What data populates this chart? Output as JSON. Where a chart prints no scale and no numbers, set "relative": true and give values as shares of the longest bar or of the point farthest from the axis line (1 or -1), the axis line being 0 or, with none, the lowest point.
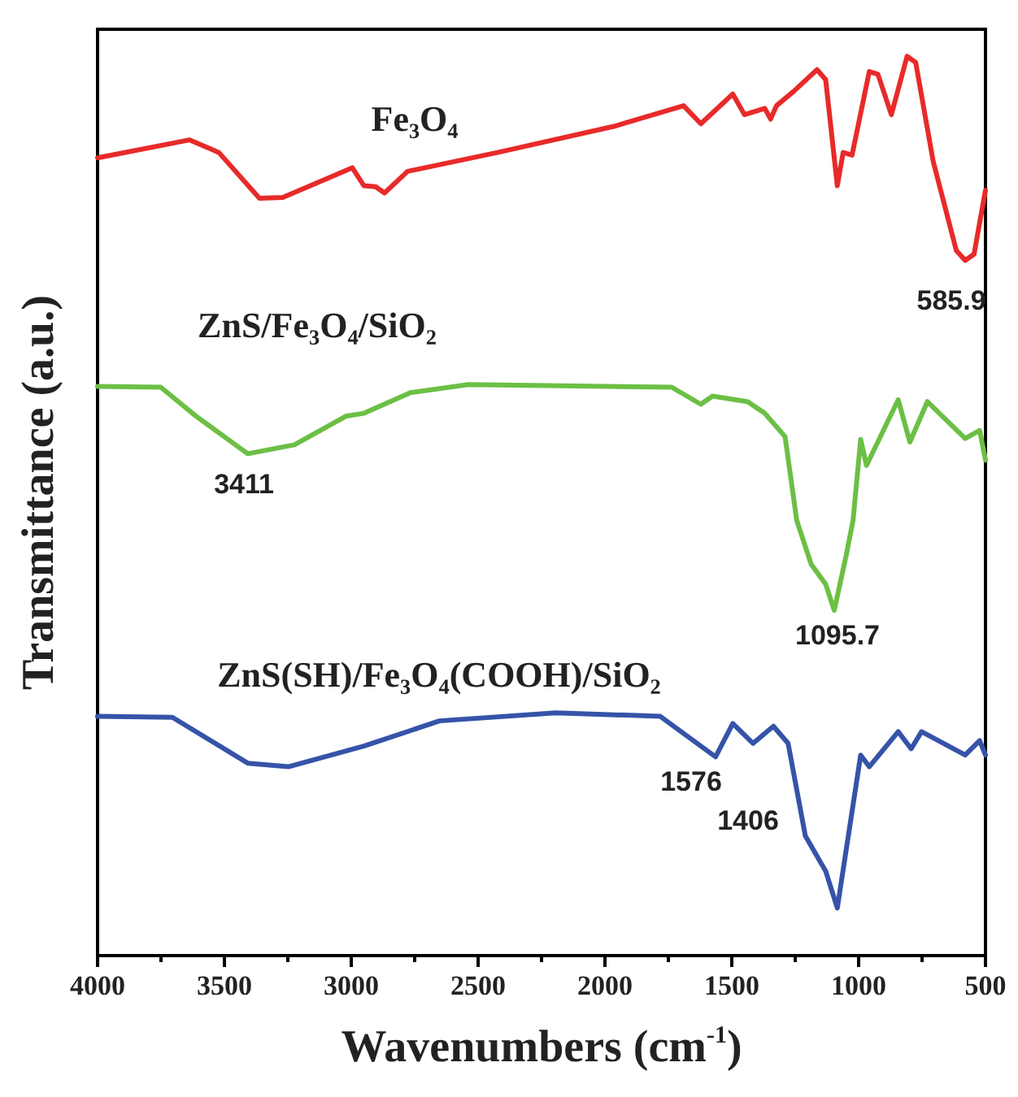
{
  "chart_data": {
    "type": "line",
    "relative": true,
    "xlabel": "Wavenumbers (cm$^{-1}$)",
    "ylabel": "Transmittance (a.u.)",
    "xlim": [
      4000,
      500
    ],
    "xticks": [
      4000,
      3500,
      3000,
      2500,
      2000,
      1500,
      1000,
      500
    ],
    "legend": false,
    "grid": false,
    "series": [
      {
        "name": "Fe₃O₄",
        "color": "#e82a2a",
        "x": [
          4000,
          3637,
          3522,
          3362,
          3270,
          2996,
          2950,
          2904,
          2869,
          2778,
          2423,
          1965,
          1690,
          1622,
          1496,
          1450,
          1370,
          1347,
          1324,
          1256,
          1164,
          1130,
          1084,
          1061,
          1026,
          958,
          924,
          871,
          809,
          775,
          706,
          615,
          580,
          545,
          500
        ],
        "values": [
          0.887,
          0.907,
          0.893,
          0.842,
          0.843,
          0.876,
          0.856,
          0.855,
          0.848,
          0.872,
          0.893,
          0.922,
          0.945,
          0.925,
          0.958,
          0.935,
          0.942,
          0.93,
          0.945,
          0.961,
          0.985,
          0.974,
          0.856,
          0.893,
          0.89,
          0.983,
          0.98,
          0.935,
          1,
          0.993,
          0.883,
          0.784,
          0.773,
          0.78,
          0.851
        ]
      },
      {
        "name": "ZnS/Fe₃O₄/SiO₂",
        "color": "#6cbf45",
        "x": [
          4000,
          3751,
          3613,
          3408,
          3224,
          3019,
          2950,
          2767,
          2538,
          1737,
          1622,
          1576,
          1438,
          1370,
          1290,
          1244,
          1187,
          1130,
          1096,
          1049,
          1022,
          992,
          969,
          844,
          798,
          729,
          580,
          523,
          500
        ],
        "values": [
          0.633,
          0.632,
          0.6,
          0.558,
          0.568,
          0.6,
          0.603,
          0.626,
          0.635,
          0.632,
          0.613,
          0.622,
          0.616,
          0.603,
          0.577,
          0.484,
          0.435,
          0.413,
          0.384,
          0.445,
          0.484,
          0.574,
          0.545,
          0.618,
          0.571,
          0.616,
          0.575,
          0.584,
          0.551
        ]
      },
      {
        "name": "ZnS(SH)/Fe₃O₄(COOH)/SiO₂",
        "color": "#3553a8",
        "x": [
          4000,
          3705,
          3408,
          3248,
          2950,
          2652,
          2194,
          1782,
          1564,
          1496,
          1416,
          1336,
          1278,
          1210,
          1130,
          1084,
          992,
          958,
          844,
          793,
          752,
          580,
          523,
          500
        ],
        "values": [
          0.266,
          0.265,
          0.214,
          0.21,
          0.233,
          0.261,
          0.27,
          0.266,
          0.221,
          0.258,
          0.236,
          0.255,
          0.236,
          0.133,
          0.094,
          0.053,
          0.223,
          0.21,
          0.249,
          0.23,
          0.249,
          0.223,
          0.239,
          0.223
        ]
      }
    ],
    "annotations": [
      "585.9",
      "3411",
      "1095.7",
      "1576",
      "1406"
    ]
  }
}
